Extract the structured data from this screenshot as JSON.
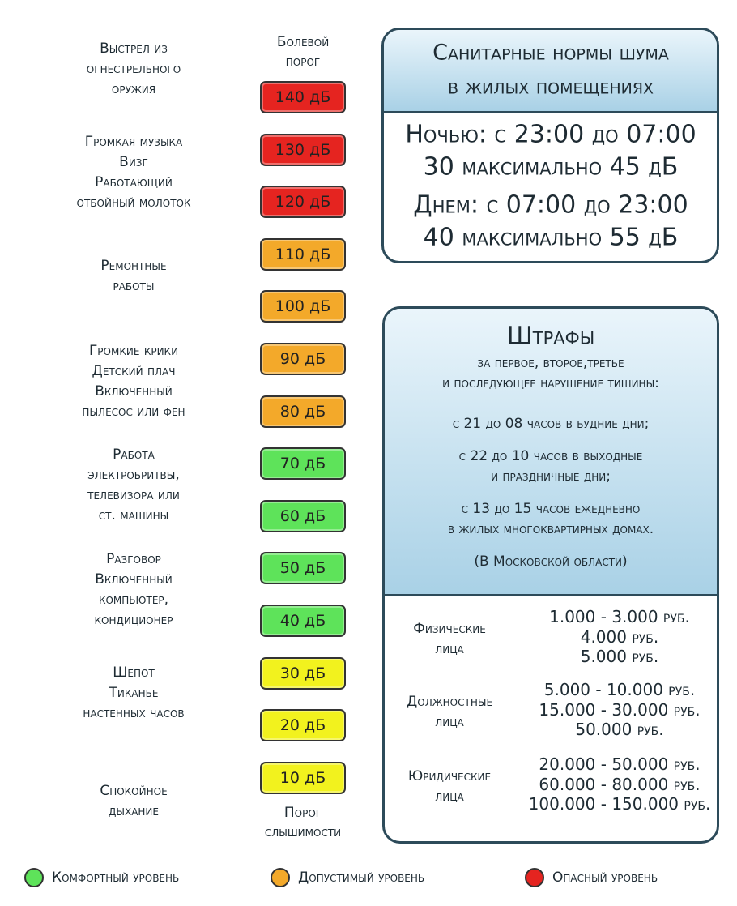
{
  "sources": [
    {
      "lines": [
        "Выстрел из",
        "огнестрельного",
        "оружия"
      ]
    },
    {
      "lines": [
        "Громкая музыка",
        "Визг",
        "Работающий",
        "отбойный молоток"
      ]
    },
    {
      "lines": [
        "Ремонтные",
        "работы"
      ]
    },
    {
      "lines": [
        "Громкие крики",
        "Детский плач",
        "Включенный",
        "пылесос или фен"
      ]
    },
    {
      "lines": [
        "Работа",
        "электробритвы,",
        "телевизора или",
        "ст. машины"
      ]
    },
    {
      "lines": [
        "Разговор",
        "Включенный",
        "компьютер,",
        "кондиционер"
      ]
    },
    {
      "lines": [
        "Шепот",
        "Тиканье",
        "настенных часов"
      ]
    },
    {
      "lines": [
        "Спокойное",
        "дыхание"
      ]
    }
  ],
  "scale": {
    "top_label": [
      "Болевой",
      "порог"
    ],
    "bottom_label": [
      "Порог",
      "слышимости"
    ],
    "levels": [
      {
        "label": "140 дБ",
        "color": "#e52420"
      },
      {
        "label": "130 дБ",
        "color": "#e52420"
      },
      {
        "label": "120 дБ",
        "color": "#e52420"
      },
      {
        "label": "110 дБ",
        "color": "#f3a92a"
      },
      {
        "label": "100 дБ",
        "color": "#f3a92a"
      },
      {
        "label": "90 дБ",
        "color": "#f3a92a"
      },
      {
        "label": "80 дБ",
        "color": "#f3a92a"
      },
      {
        "label": "70 дБ",
        "color": "#5ee35a"
      },
      {
        "label": "60 дБ",
        "color": "#5ee35a"
      },
      {
        "label": "50 дБ",
        "color": "#5ee35a"
      },
      {
        "label": "40 дБ",
        "color": "#5ee35a"
      },
      {
        "label": "30 дБ",
        "color": "#f2f21e"
      },
      {
        "label": "20 дБ",
        "color": "#f2f21e"
      },
      {
        "label": "10 дБ",
        "color": "#f2f21e"
      }
    ]
  },
  "norms": {
    "title": [
      "Санитарные нормы шума",
      "в жилых помещениях"
    ],
    "night": [
      "Ночью: с 23:00 до 07:00",
      "30 максимально 45 дБ"
    ],
    "day": [
      "Днем: с 07:00 до 23:00",
      "40 максимально 55 дБ"
    ]
  },
  "fines": {
    "title": "Штрафы",
    "subtitle": [
      "за первое, второе,третье",
      "и последующее нарушение тишины:"
    ],
    "rules": [
      [
        "с 21 до 08 часов в будние дни;"
      ],
      [
        "с 22 до 10 часов в выходные",
        "и праздничные дни;"
      ],
      [
        "с 13 до 15 часов ежедневно",
        "в жилых многоквартирных домах."
      ]
    ],
    "region": "(В Московской области)",
    "penalties": [
      {
        "entity": [
          "Физические",
          "лица"
        ],
        "amounts": [
          "1.000 - 3.000 руб.",
          "4.000 руб.",
          "5.000 руб."
        ]
      },
      {
        "entity": [
          "Должностные",
          "лица"
        ],
        "amounts": [
          "5.000 - 10.000 руб.",
          "15.000 - 30.000 руб.",
          "50.000 руб."
        ]
      },
      {
        "entity": [
          "Юридические",
          "лица"
        ],
        "amounts": [
          "20.000 - 50.000 руб.",
          "60.000 - 80.000 руб.",
          "100.000 - 150.000 руб."
        ]
      }
    ]
  },
  "legend": [
    {
      "label": "Комфортный уровень",
      "color": "#5ee35a"
    },
    {
      "label": "Допустимый уровень",
      "color": "#f3a92a"
    },
    {
      "label": "Опасный уровень",
      "color": "#e52420"
    }
  ]
}
